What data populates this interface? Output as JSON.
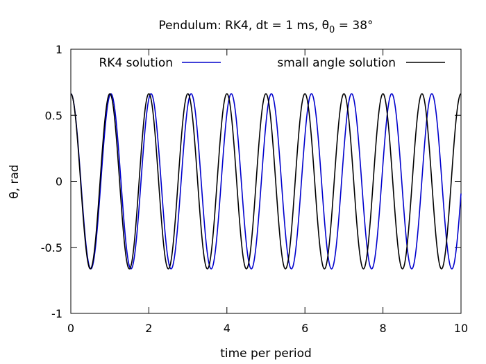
{
  "chart_data": {
    "type": "line",
    "title": "Pendulum: RK4, dt = 1 ms, θ",
    "title_sub": "0",
    "title_tail": " = 38°",
    "xlabel": "time per period",
    "ylabel": "θ, rad",
    "xlim": [
      0,
      10
    ],
    "ylim": [
      -1,
      1
    ],
    "xticks": [
      "0",
      "2",
      "4",
      "6",
      "8",
      "10"
    ],
    "yticks": [
      "1",
      "0.5",
      "0",
      "-0.5",
      "-1"
    ],
    "legend_placement": "top",
    "grid": false,
    "series": [
      {
        "name": "RK4 solution",
        "color": "#0000cc",
        "amplitude": 0.663,
        "period": 1.028,
        "x": [
          0,
          0.514,
          1.028,
          1.542,
          2.056,
          2.57,
          3.084,
          3.598,
          4.112,
          4.626,
          5.14,
          5.654,
          6.168,
          6.682,
          7.196,
          7.71,
          8.224,
          8.738,
          9.252,
          9.766,
          10
        ],
        "y": [
          0.663,
          -0.663,
          0.663,
          -0.663,
          0.663,
          -0.663,
          0.663,
          -0.663,
          0.663,
          -0.663,
          0.663,
          -0.663,
          0.663,
          -0.663,
          0.663,
          -0.663,
          0.663,
          -0.663,
          0.663,
          -0.663,
          -0.18
        ]
      },
      {
        "name": "small angle solution",
        "color": "#000000",
        "amplitude": 0.663,
        "period": 1.0,
        "x": [
          0,
          0.5,
          1,
          1.5,
          2,
          2.5,
          3,
          3.5,
          4,
          4.5,
          5,
          5.5,
          6,
          6.5,
          7,
          7.5,
          8,
          8.5,
          9,
          9.5,
          10
        ],
        "y": [
          0.663,
          -0.663,
          0.663,
          -0.663,
          0.663,
          -0.663,
          0.663,
          -0.663,
          0.663,
          -0.663,
          0.663,
          -0.663,
          0.663,
          -0.663,
          0.663,
          -0.663,
          0.663,
          -0.663,
          0.663,
          -0.663,
          0.663
        ]
      }
    ]
  }
}
